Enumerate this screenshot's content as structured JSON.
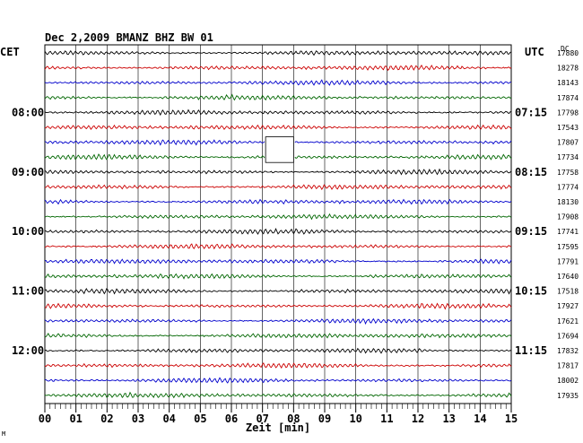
{
  "chart_data": {
    "type": "line",
    "title": "Dec 2,2009   BMANZ BHZ BW 01",
    "xlabel": "Zeit [min]",
    "ylabel_left": "CET",
    "ylabel_right": "UTC",
    "dc_header": "DC",
    "x_ticks": [
      "00",
      "01",
      "02",
      "03",
      "04",
      "05",
      "06",
      "07",
      "08",
      "09",
      "10",
      "11",
      "12",
      "13",
      "14",
      "15"
    ],
    "xlim": [
      0,
      15
    ],
    "left_time_labels": [
      {
        "row": 4,
        "label": "08:00"
      },
      {
        "row": 8,
        "label": "09:00"
      },
      {
        "row": 12,
        "label": "10:00"
      },
      {
        "row": 16,
        "label": "11:00"
      },
      {
        "row": 20,
        "label": "12:00"
      }
    ],
    "right_time_labels": [
      {
        "row": 4,
        "label": "07:15"
      },
      {
        "row": 8,
        "label": "08:15"
      },
      {
        "row": 12,
        "label": "09:15"
      },
      {
        "row": 16,
        "label": "10:15"
      },
      {
        "row": 20,
        "label": "11:15"
      }
    ],
    "dc_values": [
      "17880",
      "18278",
      "18143",
      "17874",
      "17798",
      "17543",
      "17807",
      "17734",
      "17758",
      "17774",
      "18130",
      "17908",
      "17741",
      "17595",
      "17791",
      "17640",
      "17518",
      "17927",
      "17621",
      "17694",
      "17832",
      "17817",
      "18002",
      "17935"
    ],
    "series_colors": [
      "#000000",
      "#cc0000",
      "#0000cc",
      "#006600"
    ],
    "data_gap": {
      "row_start": 6,
      "row_end": 7,
      "x_start": 7.1,
      "x_end": 8.0
    },
    "corner_mark": "M"
  }
}
